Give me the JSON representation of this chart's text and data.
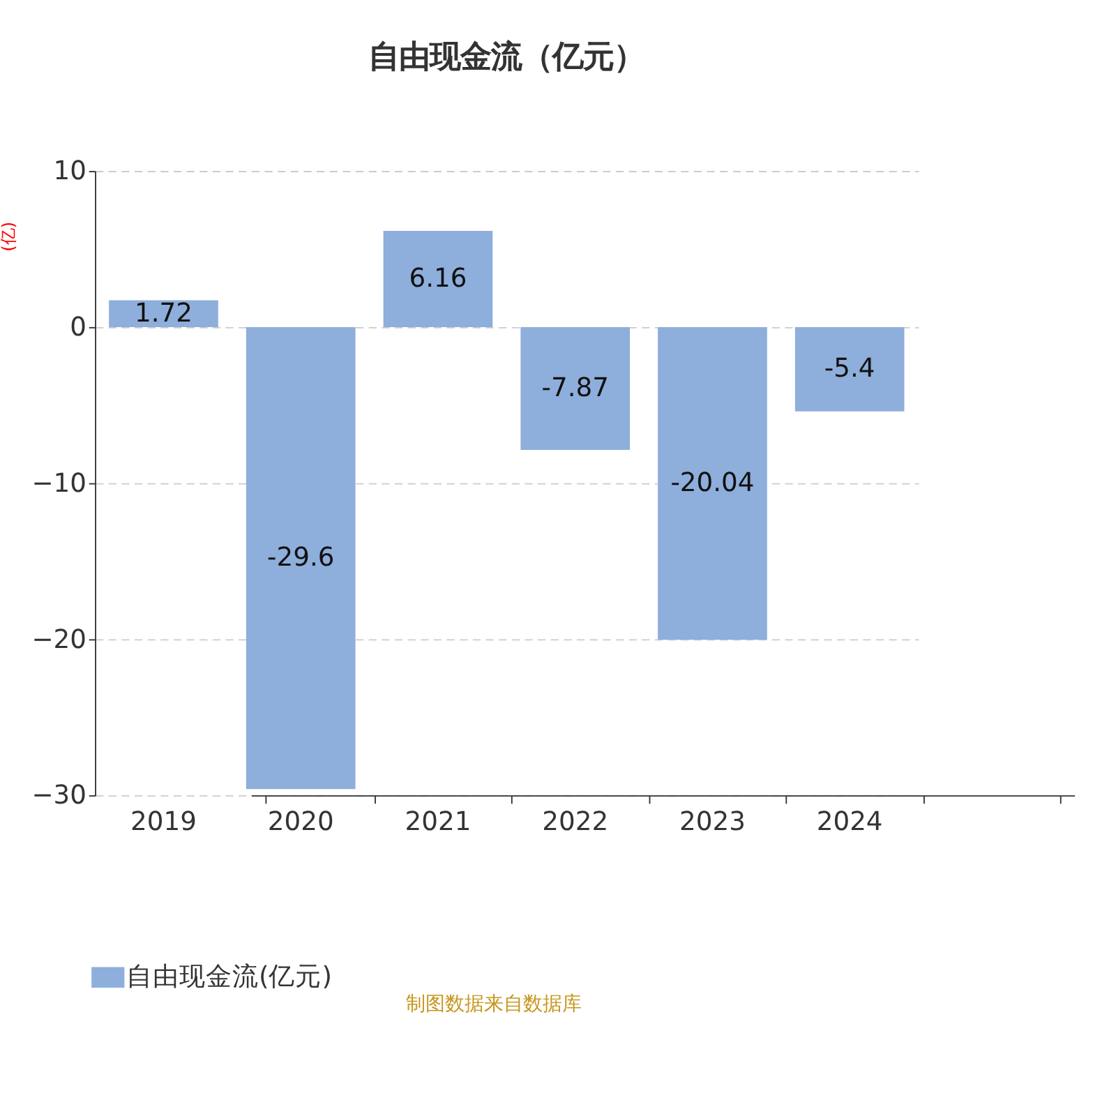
{
  "chart_data": {
    "type": "bar",
    "title": "自由现金流（亿元）",
    "ylabel": "(亿)",
    "categories": [
      "2019",
      "2020",
      "2021",
      "2022",
      "2023",
      "2024"
    ],
    "series": [
      {
        "name": "自由现金流(亿元)",
        "color": "#8eaedb",
        "values": [
          1.72,
          -29.6,
          6.16,
          -7.87,
          -20.04,
          -5.4
        ]
      }
    ],
    "ylim": [
      -30,
      10
    ],
    "yticks": [
      -30,
      -20,
      -10,
      0,
      10
    ],
    "grid": "y",
    "legend": "bottom",
    "data_labels": true,
    "annotations": [
      "制图数据来自数据库"
    ]
  }
}
